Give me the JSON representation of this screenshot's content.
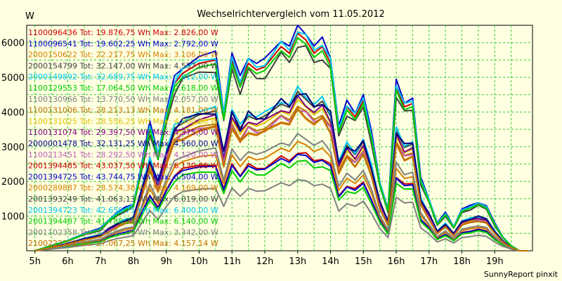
{
  "chart_data": {
    "type": "line",
    "title": "Wechselrichtervergleich vom 11.05.2012",
    "ylabel": "W",
    "xlabel": "",
    "credit": "SunnyReport pinxit",
    "grid": true,
    "legend_position": "top-left",
    "x_ticks": [
      "5h",
      "6h",
      "7h",
      "8h",
      "9h",
      "10h",
      "11h",
      "12h",
      "13h",
      "14h",
      "15h",
      "16h",
      "17h",
      "18h",
      "19h"
    ],
    "xlim": [
      4.75,
      20.15
    ],
    "y_ticks": [
      1000,
      2000,
      3000,
      4000,
      5000,
      6000
    ],
    "ylim": [
      0,
      6500
    ],
    "series": [
      {
        "name": "1100096436 Tot: 19.876,75 Wh Max: 2.826,00 W",
        "color": "#CC0000",
        "scale": 0.44
      },
      {
        "name": "1100096541 Tot: 19.602,25 Wh Max: 2.792,00 W",
        "color": "#0000CC",
        "scale": 0.432
      },
      {
        "name": "2000150622 Tot: 22.217,75 Wh Max: 3.106,00 W",
        "color": "#D98000",
        "scale": 0.485
      },
      {
        "name": "2000154799 Tot: 32.147,00 Wh Max: 4.557,00 W",
        "color": "#404040",
        "scale": 0.7
      },
      {
        "name": "2000149892 Tot: 32.689,75 Wh Max: 4.612,00 W",
        "color": "#00C8F0",
        "scale": 0.715
      },
      {
        "name": "1100129553 Tot: 17.064,50 Wh Max: 2.618,00 W",
        "color": "#00CC00",
        "scale": 0.405
      },
      {
        "name": "1100130966 Tot: 13.770,50 Wh Max: 2.057,00 W",
        "color": "#808080",
        "scale": 0.318
      },
      {
        "name": "1100131006 Tot: 28.213,13 Wh Max: 4.181,00 W",
        "color": "#C07000",
        "scale": 0.64
      },
      {
        "name": "1100131025 Tot: 28.556,25 Wh Max: 4.330,00 W",
        "color": "#E0C000",
        "scale": 0.665
      },
      {
        "name": "1100131074 Tot: 29.397,50 Wh Max: 4.375,00 W",
        "color": "#800080",
        "scale": 0.675
      },
      {
        "name": "2000001478 Tot: 32.131,25 Wh Max: 4.560,00 W",
        "color": "#000080",
        "scale": 0.705
      },
      {
        "name": "1100213451 Tot: 28.292,50 Wh Max: 4.120,00 W",
        "color": "#C060C0",
        "scale": 0.63
      },
      {
        "name": "2001394485 Tot: 43.037,50 Wh Max: 6.130,00 W",
        "color": "#CC0000",
        "scale": 0.965
      },
      {
        "name": "2001394725 Tot: 43.744,75 Wh Max: 6.504,00 W",
        "color": "#0000CC",
        "scale": 1.0
      },
      {
        "name": "2000289887 Tot: 28.574,38 Wh Max: 4.169,00 W",
        "color": "#D98000",
        "scale": 0.615
      },
      {
        "name": "2001393249 Tot: 41.063,13 Wh Max: 6.019,00 W",
        "color": "#404040",
        "scale": 0.92
      },
      {
        "name": "2001394723 Tot: 42.650,75 Wh Max: 6.400,00 W",
        "color": "#00C8F0",
        "scale": 0.98
      },
      {
        "name": "2001394487 Tot: 41.788,25 Wh Max: 6.140,00 W",
        "color": "#00CC00",
        "scale": 0.945
      },
      {
        "name": "2001102358 Tot: 22.400,00 Wh Max: 3.342,00 W",
        "color": "#808080",
        "scale": 0.515
      },
      {
        "name": "2100222222 Tot: 27.067,25 Wh Max: 4.157,14 W",
        "color": "#C07000",
        "scale": 0.62
      }
    ],
    "profile": {
      "x": [
        5.0,
        5.5,
        6.0,
        6.5,
        7.0,
        7.25,
        7.5,
        7.75,
        8.0,
        8.25,
        8.5,
        8.75,
        9.0,
        9.25,
        9.5,
        10.0,
        10.5,
        10.75,
        11.0,
        11.25,
        11.5,
        11.75,
        12.0,
        12.5,
        12.75,
        13.0,
        13.25,
        13.5,
        13.75,
        14.0,
        14.25,
        14.5,
        14.75,
        15.0,
        15.25,
        15.5,
        15.75,
        16.0,
        16.25,
        16.5,
        16.75,
        17.0,
        17.25,
        17.5,
        17.75,
        18.0,
        18.25,
        18.5,
        18.75,
        19.0,
        19.25,
        19.5,
        19.75,
        20.0
      ],
      "y": [
        0,
        150,
        300,
        500,
        650,
        900,
        1100,
        1250,
        1350,
        2500,
        3700,
        2800,
        4000,
        5000,
        5300,
        5600,
        5700,
        4000,
        5700,
        5000,
        5600,
        5400,
        5500,
        6100,
        5900,
        6500,
        6300,
        5900,
        6100,
        5600,
        3600,
        4300,
        4000,
        4500,
        3400,
        2000,
        1200,
        4900,
        4300,
        4400,
        2100,
        1500,
        800,
        1100,
        700,
        1200,
        1300,
        1400,
        1300,
        800,
        400,
        150,
        0,
        0
      ]
    }
  }
}
